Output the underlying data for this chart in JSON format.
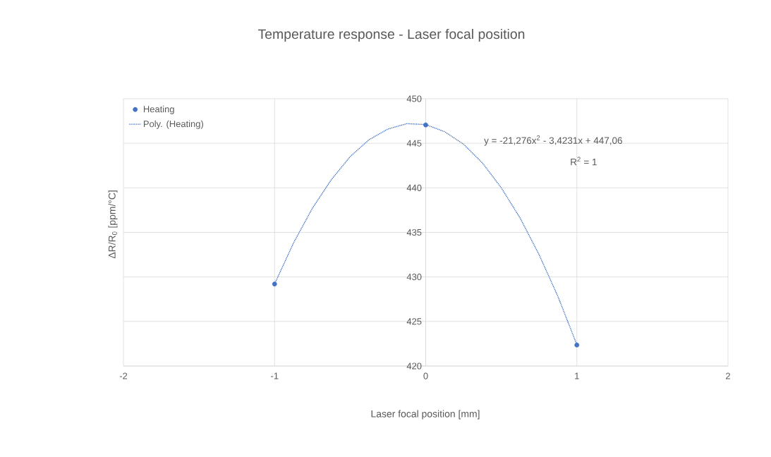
{
  "chart_data": {
    "type": "scatter",
    "title": "Temperature response - Laser focal position",
    "xlabel": "Laser focal position [mm]",
    "ylabel": "ΔR/R$_{0}$ [ppm/°C]",
    "xlim": [
      -2,
      2
    ],
    "xticks": [
      -2,
      -1,
      0,
      1,
      2
    ],
    "ylim": [
      420,
      450
    ],
    "yticks": [
      420,
      425,
      430,
      435,
      440,
      445,
      450
    ],
    "grid": true,
    "legend": "top left",
    "marker": "circle",
    "series": [
      {
        "name": "Heating",
        "color": "#4472c4",
        "x": [
          -1,
          0,
          1
        ],
        "values": [
          429.2,
          447.06,
          422.36
        ]
      },
      {
        "name": "Poly. (Heating)",
        "type": "line",
        "line_style": "dotted",
        "marker": "none",
        "color": "#4472c4",
        "x": [
          -1,
          -0.875,
          -0.75,
          -0.625,
          -0.5,
          -0.375,
          -0.25,
          -0.125,
          0,
          0.125,
          0.25,
          0.375,
          0.5,
          0.625,
          0.75,
          0.875,
          1
        ],
        "values": [
          429.2,
          433.8,
          437.7,
          440.9,
          443.5,
          445.4,
          446.6,
          447.2,
          447.1,
          446.3,
          444.9,
          442.8,
          440.0,
          436.6,
          432.5,
          427.8,
          422.4
        ]
      }
    ],
    "annotations": [
      "y = -21,276x$^{2}$ - 3,4231x + 447,06",
      "R$^{2}$ = 1"
    ]
  }
}
